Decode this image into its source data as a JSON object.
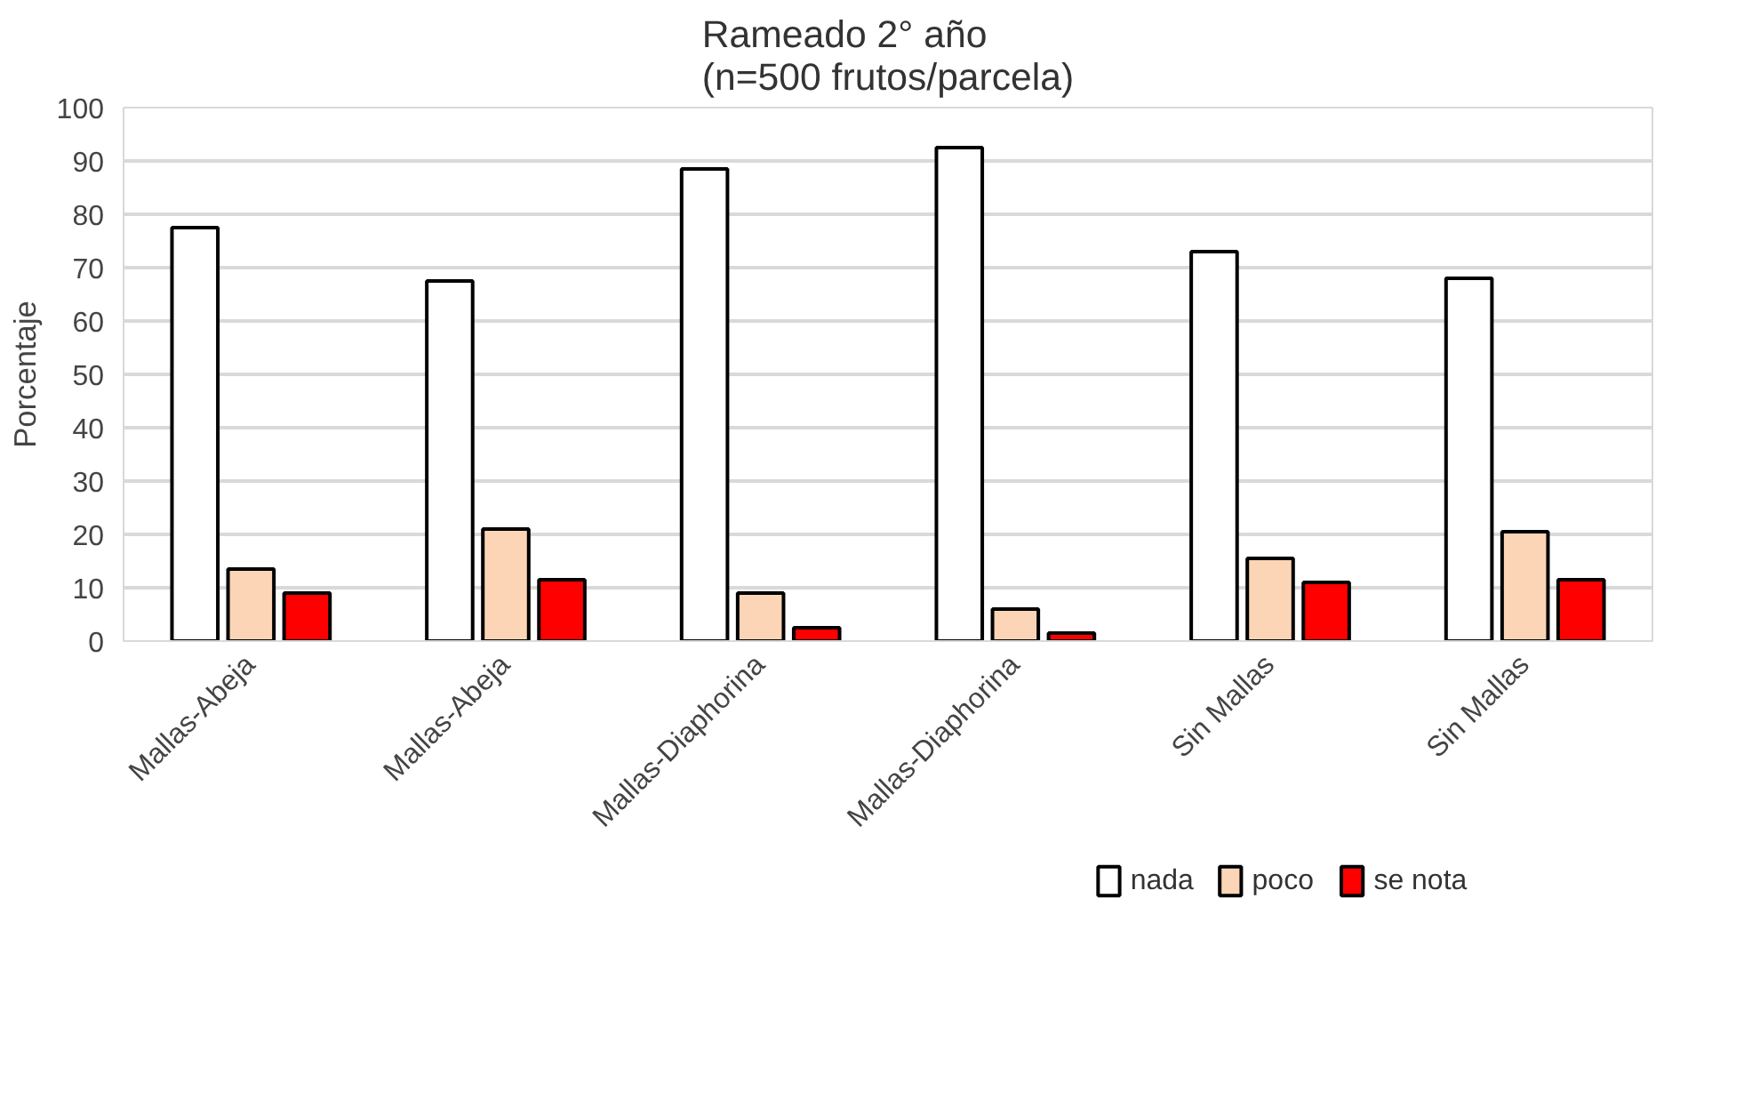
{
  "chart_data": {
    "type": "bar",
    "title": "Rameado 2° año\n(n=500 frutos/parcela)",
    "ylabel": "Porcentaje",
    "categories": [
      "Mallas-Abeja",
      "Mallas-Abeja",
      "Mallas-Diaphorina",
      "Mallas-Diaphorina",
      "Sin Mallas",
      "Sin Mallas"
    ],
    "series": [
      {
        "name": "nada",
        "color": "#ffffff",
        "values": [
          77.5,
          67.5,
          88.5,
          92.5,
          73,
          68
        ]
      },
      {
        "name": "poco",
        "color": "#fbd5b5",
        "values": [
          13.5,
          21,
          9,
          6,
          15.5,
          20.5
        ]
      },
      {
        "name": "se nota",
        "color": "#ff0000",
        "values": [
          9,
          11.5,
          2.5,
          1.5,
          11,
          11.5
        ]
      }
    ],
    "ylim": [
      0,
      100
    ],
    "yticks": [
      0,
      10,
      20,
      30,
      40,
      50,
      60,
      70,
      80,
      90,
      100
    ],
    "grid": "y",
    "legend": "bottom right"
  }
}
